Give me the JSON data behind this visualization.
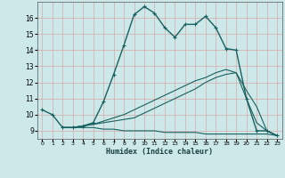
{
  "xlabel": "Humidex (Indice chaleur)",
  "bg_color": "#cce8e8",
  "line_color": "#1a6060",
  "grid_color": "#d8aaaa",
  "xlim": [
    -0.5,
    23.5
  ],
  "ylim": [
    8.5,
    17.0
  ],
  "xticks": [
    0,
    1,
    2,
    3,
    4,
    5,
    6,
    7,
    8,
    9,
    10,
    11,
    12,
    13,
    14,
    15,
    16,
    17,
    18,
    19,
    20,
    21,
    22,
    23
  ],
  "yticks": [
    9,
    10,
    11,
    12,
    13,
    14,
    15,
    16
  ],
  "line1_x": [
    0,
    1,
    2,
    3,
    4,
    5,
    6,
    7,
    8,
    9,
    10,
    11,
    12,
    13,
    14,
    15,
    16,
    17,
    18,
    19,
    20,
    21,
    22,
    23
  ],
  "line1_y": [
    10.3,
    10.0,
    9.2,
    9.2,
    9.3,
    9.5,
    10.8,
    12.5,
    14.3,
    16.2,
    16.7,
    16.3,
    15.4,
    14.8,
    15.6,
    15.6,
    16.1,
    15.4,
    14.1,
    14.0,
    11.0,
    9.0,
    9.0,
    8.7
  ],
  "line2_x": [
    2,
    3,
    4,
    5,
    6,
    7,
    8,
    9,
    10,
    11,
    12,
    13,
    14,
    15,
    16,
    17,
    18,
    19,
    20,
    21,
    22,
    23
  ],
  "line2_y": [
    9.2,
    9.2,
    9.3,
    9.4,
    9.5,
    9.6,
    9.7,
    9.8,
    10.1,
    10.4,
    10.7,
    11.0,
    11.3,
    11.6,
    12.0,
    12.3,
    12.5,
    12.6,
    11.0,
    9.5,
    9.0,
    8.7
  ],
  "line3_x": [
    2,
    3,
    4,
    5,
    6,
    7,
    8,
    9,
    10,
    11,
    12,
    13,
    14,
    15,
    16,
    17,
    18,
    19,
    20,
    21,
    22,
    23
  ],
  "line3_y": [
    9.2,
    9.2,
    9.2,
    9.2,
    9.1,
    9.1,
    9.0,
    9.0,
    9.0,
    9.0,
    8.9,
    8.9,
    8.9,
    8.9,
    8.8,
    8.8,
    8.8,
    8.8,
    8.8,
    8.8,
    8.8,
    8.7
  ],
  "line4_x": [
    2,
    3,
    4,
    5,
    6,
    7,
    8,
    9,
    10,
    11,
    12,
    13,
    14,
    15,
    16,
    17,
    18,
    19,
    20,
    21,
    22,
    23
  ],
  "line4_y": [
    9.2,
    9.2,
    9.3,
    9.4,
    9.6,
    9.8,
    10.0,
    10.3,
    10.6,
    10.9,
    11.2,
    11.5,
    11.8,
    12.1,
    12.3,
    12.6,
    12.8,
    12.6,
    11.5,
    10.5,
    9.0,
    8.7
  ]
}
